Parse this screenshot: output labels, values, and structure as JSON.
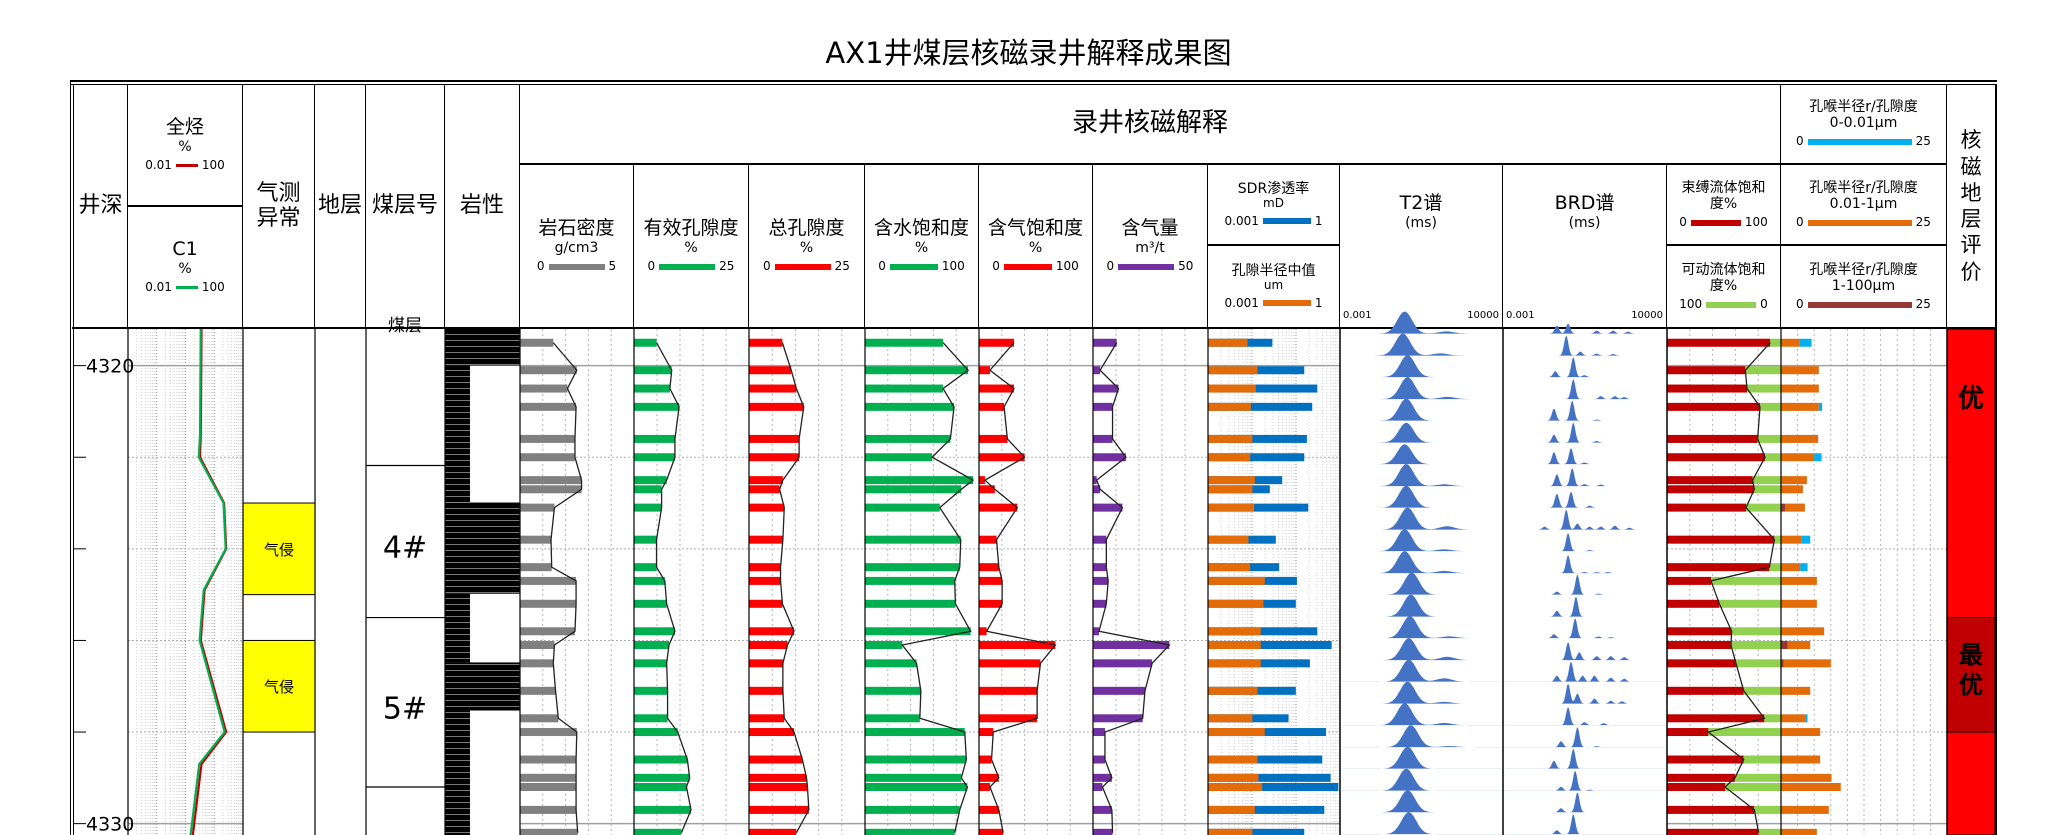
{
  "title": "AX1井煤层核磁录井解释成果图",
  "header": {
    "depth": "井深",
    "total_hc": {
      "name": "全烃",
      "unit": "%",
      "min": "0.01",
      "max": "100",
      "color": "#c00000"
    },
    "c1": {
      "name": "C1",
      "unit": "%",
      "min": "0.01",
      "max": "100",
      "color": "#00b050"
    },
    "gas_anomaly": "气测异常",
    "formation": "地层",
    "seam_no": "煤层号",
    "lithology": "岩性",
    "nmr_group": "录井核磁解释",
    "density": {
      "name": "岩石密度",
      "unit": "g/cm3",
      "min": "0",
      "max": "5",
      "color": "#808080"
    },
    "eff_porosity": {
      "name": "有效孔隙度",
      "unit": "%",
      "min": "0",
      "max": "25",
      "color": "#00b050"
    },
    "total_porosity": {
      "name": "总孔隙度",
      "unit": "%",
      "min": "0",
      "max": "25",
      "color": "#ff0000"
    },
    "water_sat": {
      "name": "含水饱和度",
      "unit": "%",
      "min": "0",
      "max": "100",
      "color": "#00b050"
    },
    "gas_sat": {
      "name": "含气饱和度",
      "unit": "%",
      "min": "0",
      "max": "100",
      "color": "#ff0000"
    },
    "gas_content": {
      "name": "含气量",
      "unit": "m³/t",
      "min": "0",
      "max": "50",
      "color": "#7030a0"
    },
    "sdr": {
      "name": "SDR渗透率",
      "unit": "mD",
      "min": "0.001",
      "max": "1",
      "color": "#0070c0"
    },
    "pore_radius": {
      "name": "孔隙半径中值",
      "unit": "um",
      "min": "0.001",
      "max": "1",
      "color": "#e36c09"
    },
    "t2": {
      "name": "T2谱",
      "unit": "(ms)",
      "min": "0.001",
      "max": "10000"
    },
    "brd": {
      "name": "BRD谱",
      "unit": "(ms)",
      "min": "0.001",
      "max": "10000"
    },
    "bound_fluid": {
      "name": "束缚流体饱和度%",
      "min": "0",
      "max": "100",
      "color": "#c00000"
    },
    "movable_fluid": {
      "name": "可动流体饱和度%",
      "min": "100",
      "max": "0",
      "color": "#92d050"
    },
    "throat1": {
      "name": "孔喉半径r/孔隙度",
      "range": "0-0.01μm",
      "min": "0",
      "max": "25",
      "color": "#00b0f0"
    },
    "throat2": {
      "name": "孔喉半径r/孔隙度",
      "range": "0.01-1μm",
      "min": "0",
      "max": "25",
      "color": "#e36c09"
    },
    "throat3": {
      "name": "孔喉半径r/孔隙度",
      "range": "1-100μm",
      "min": "0",
      "max": "25",
      "color": "#953735"
    },
    "evaluation": "核磁地层评价"
  },
  "depth_range": [
    4319.2,
    4330.25
  ],
  "depth_labels": [
    "4320",
    "4330"
  ],
  "chart_data": {
    "type": "well-log",
    "hydrocarbon": {
      "scale": "log",
      "range": [
        0.01,
        100
      ],
      "total_hc": [
        [
          4319.2,
          3.6
        ],
        [
          4321.5,
          3.4
        ],
        [
          4322.0,
          3.2
        ],
        [
          4323.0,
          22
        ],
        [
          4324.0,
          26
        ],
        [
          4324.9,
          4.6
        ],
        [
          4326.0,
          3.4
        ],
        [
          4328.0,
          26
        ],
        [
          4328.7,
          3.6
        ],
        [
          4330.25,
          1.8
        ]
      ],
      "c1": [
        [
          4319.2,
          3.4
        ],
        [
          4321.5,
          3.2
        ],
        [
          4322.0,
          2.9
        ],
        [
          4323.0,
          21
        ],
        [
          4324.0,
          25
        ],
        [
          4324.9,
          4.3
        ],
        [
          4326.0,
          3.1
        ],
        [
          4328.0,
          23
        ],
        [
          4328.7,
          3.0
        ],
        [
          4330.25,
          1.5
        ]
      ]
    },
    "gas_anomalies": [
      {
        "top": 4323.0,
        "bottom": 4325.0,
        "label": "气侵",
        "color": "#ffff00"
      },
      {
        "top": 4326.0,
        "bottom": 4328.0,
        "label": "气侵",
        "color": "#ffff00"
      }
    ],
    "coal_seams": [
      {
        "top": 4319.2,
        "bottom": 4322.18,
        "label": "煤层"
      },
      {
        "top": 4322.18,
        "bottom": 4325.5,
        "label": "4#"
      },
      {
        "top": 4325.5,
        "bottom": 4329.2,
        "label": "5#"
      },
      {
        "top": 4329.2,
        "bottom": 4330.25,
        "label": ""
      }
    ],
    "lithology": [
      {
        "top": 4319.2,
        "bottom": 4320.0,
        "type": "coal-full"
      },
      {
        "top": 4320.0,
        "bottom": 4322.98,
        "type": "coal-partial"
      },
      {
        "top": 4322.98,
        "bottom": 4324.98,
        "type": "coal-full"
      },
      {
        "top": 4324.98,
        "bottom": 4326.48,
        "type": "coal-partial"
      },
      {
        "top": 4326.48,
        "bottom": 4327.53,
        "type": "coal-full"
      },
      {
        "top": 4327.53,
        "bottom": 4330.25,
        "type": "coal-partial"
      }
    ],
    "sample_depths": [
      4319.5,
      4320.1,
      4320.5,
      4320.9,
      4321.6,
      4322.0,
      4322.5,
      4322.7,
      4323.1,
      4323.8,
      4324.4,
      4324.7,
      4325.2,
      4325.8,
      4326.1,
      4326.5,
      4327.1,
      4327.7,
      4328.0,
      4328.6,
      4329.0,
      4329.2,
      4329.7,
      4330.2
    ],
    "density": [
      1.46,
      2.49,
      2.08,
      2.46,
      2.41,
      2.41,
      2.7,
      2.7,
      1.51,
      1.36,
      1.39,
      2.46,
      2.46,
      2.41,
      1.51,
      1.46,
      1.56,
      1.68,
      2.49,
      2.46,
      2.46,
      2.46,
      2.46,
      2.53
    ],
    "eff_porosity": [
      4.9,
      8.2,
      7.8,
      9.8,
      8.9,
      8.9,
      7.1,
      6.0,
      6.0,
      4.9,
      4.9,
      6.7,
      7.1,
      8.9,
      7.6,
      7.1,
      7.3,
      7.3,
      9.5,
      11.6,
      12.1,
      11.4,
      12.4,
      10.3
    ],
    "total_porosity": [
      7.2,
      9.1,
      10.2,
      11.8,
      10.8,
      10.8,
      7.3,
      6.6,
      7.6,
      7.3,
      6.8,
      6.8,
      7.2,
      9.7,
      8.3,
      7.3,
      7.3,
      7.6,
      9.7,
      11.5,
      12.4,
      12.6,
      12.9,
      10.2
    ],
    "water_sat": [
      68.5,
      90.4,
      68.5,
      78.1,
      74.9,
      58.9,
      94.8,
      84.5,
      65.6,
      84.0,
      83.1,
      78.7,
      79.3,
      92.7,
      32.7,
      45.2,
      49.0,
      48.1,
      87.5,
      88.9,
      84.5,
      89.8,
      83.1,
      78.7
    ],
    "gas_sat": [
      30.7,
      9.6,
      30.7,
      22.0,
      24.9,
      40.0,
      5.2,
      13.9,
      33.6,
      15.4,
      17.4,
      20.3,
      20.3,
      6.7,
      67.0,
      53.9,
      51.0,
      51.0,
      12.5,
      11.0,
      17.4,
      9.6,
      17.4,
      21.2
    ],
    "gas_content": [
      10.3,
      3.1,
      11.1,
      8.5,
      8.5,
      14.3,
      1.6,
      3.1,
      12.8,
      5.8,
      5.8,
      6.6,
      5.8,
      2.6,
      33.2,
      25.7,
      22.6,
      21.6,
      5.2,
      5.2,
      8.2,
      4.1,
      8.2,
      8.5
    ],
    "sdr_perm": [
      0.029,
      0.154,
      0.305,
      0.234,
      0.177,
      0.154,
      0.0485,
      0.0254,
      0.19,
      0.0348,
      0.0415,
      0.105,
      0.099,
      0.305,
      0.646,
      0.207,
      0.099,
      0.0677,
      0.48,
      0.395,
      0.612,
      0.916,
      0.44,
      0.154
    ],
    "pore_radius_median": [
      0.0079,
      0.0133,
      0.0122,
      0.0094,
      0.0102,
      0.0091,
      0.0116,
      0.0102,
      0.0112,
      0.0083,
      0.0091,
      0.0195,
      0.0182,
      0.0158,
      0.0158,
      0.0158,
      0.0133,
      0.0102,
      0.0195,
      0.0133,
      0.014,
      0.017,
      0.0116,
      0.0102
    ],
    "bound_fluid_sat": [
      90.6,
      68.7,
      70.2,
      81.6,
      79.5,
      86.0,
      75.1,
      76.6,
      69.3,
      94.2,
      89.8,
      38.6,
      45.9,
      56.7,
      56.1,
      60.5,
      67.3,
      85.4,
      36.3,
      67.3,
      59.6,
      50.9,
      76.6,
      80.4
    ],
    "movable_fluid_sat": [
      9.4,
      31.3,
      29.8,
      18.4,
      20.5,
      14.0,
      24.9,
      23.4,
      30.7,
      5.8,
      10.2,
      61.4,
      54.1,
      43.3,
      43.9,
      39.5,
      32.7,
      14.6,
      63.7,
      32.7,
      40.4,
      49.1,
      23.4,
      19.6
    ],
    "throat_0_0.01": [
      1.8,
      0,
      0,
      0.5,
      0,
      1.1,
      0,
      0,
      0,
      1.3,
      1.1,
      0,
      0,
      0,
      0,
      0,
      0,
      0.3,
      0,
      0,
      0,
      0,
      0,
      0
    ],
    "throat_0.01_1": [
      2.8,
      5.7,
      5.7,
      5.7,
      5.6,
      5.0,
      3.9,
      3.3,
      3.0,
      3.1,
      2.9,
      5.4,
      5.4,
      6.5,
      3.4,
      7.1,
      4.4,
      3.7,
      5.9,
      5.9,
      7.6,
      9.0,
      7.2,
      5.4
    ],
    "throat_1_100": [
      0,
      0,
      0,
      0,
      0,
      0,
      0,
      0,
      0.6,
      0,
      0,
      0,
      0,
      0,
      1.0,
      0.4,
      0,
      0,
      0,
      0,
      0,
      0,
      0,
      0
    ],
    "spectrum_depths": [
      4319.3,
      4319.78,
      4320.25,
      4320.73,
      4321.2,
      4321.68,
      4322.15,
      4322.63,
      4323.1,
      4323.58,
      4324.05,
      4324.53,
      4325.0,
      4325.48,
      4325.95,
      4326.43,
      4326.9,
      4327.38,
      4327.85,
      4328.33,
      4328.8,
      4329.28,
      4329.75,
      4330.23
    ],
    "t2_spectra": [
      [
        [
          0.6,
          1
        ],
        [
          37,
          0.1
        ]
      ],
      [
        [
          0.5,
          1
        ],
        [
          20,
          0.1
        ]
      ],
      [
        [
          0.8,
          1
        ]
      ],
      [
        [
          0.8,
          1
        ],
        [
          40,
          0.1
        ]
      ],
      [
        [
          0.7,
          1
        ]
      ],
      [
        [
          0.7,
          0.9
        ]
      ],
      [
        [
          0.6,
          0.9
        ]
      ],
      [
        [
          0.7,
          1
        ],
        [
          30,
          0.08
        ]
      ],
      [
        [
          0.7,
          1
        ]
      ],
      [
        [
          0.8,
          1
        ],
        [
          40,
          0.15
        ]
      ],
      [
        [
          0.6,
          1
        ],
        [
          30,
          0.08
        ]
      ],
      [
        [
          0.6,
          1
        ],
        [
          30,
          0.1
        ]
      ],
      [
        [
          1.2,
          1
        ]
      ],
      [
        [
          1.1,
          1
        ]
      ],
      [
        [
          1.0,
          1
        ],
        [
          50,
          0.08
        ]
      ],
      [
        [
          0.9,
          1
        ],
        [
          40,
          0.15
        ]
      ],
      [
        [
          0.9,
          1
        ],
        [
          30,
          0.15
        ]
      ],
      [
        [
          0.8,
          1
        ],
        [
          30,
          0.08
        ]
      ],
      [
        [
          0.6,
          1
        ],
        [
          30,
          0.1
        ]
      ],
      [
        [
          1.1,
          1
        ],
        [
          50,
          0.05
        ]
      ],
      [
        [
          0.8,
          1
        ]
      ],
      [
        [
          0.7,
          1
        ]
      ],
      [
        [
          0.8,
          1
        ]
      ],
      [
        [
          0.9,
          1
        ]
      ]
    ],
    "brd_spectra": [
      [
        [
          0.2,
          0.4
        ],
        [
          0.6,
          0.5
        ],
        [
          10,
          0.15
        ],
        [
          50,
          0.15
        ],
        [
          220,
          0.1
        ]
      ],
      [
        [
          0.5,
          1
        ],
        [
          2,
          0.2
        ],
        [
          10,
          0.1
        ],
        [
          50,
          0.08
        ]
      ],
      [
        [
          0.17,
          0.3
        ],
        [
          1,
          1
        ],
        [
          3,
          0.1
        ]
      ],
      [
        [
          1,
          1
        ],
        [
          15,
          0.15
        ],
        [
          60,
          0.15
        ],
        [
          150,
          0.1
        ]
      ],
      [
        [
          0.15,
          0.6
        ],
        [
          0.9,
          1
        ],
        [
          10,
          0.05
        ]
      ],
      [
        [
          0.15,
          0.4
        ],
        [
          1,
          1
        ],
        [
          10,
          0.08
        ]
      ],
      [
        [
          0.15,
          0.6
        ],
        [
          0.8,
          0.8
        ],
        [
          3,
          0.08
        ]
      ],
      [
        [
          0.2,
          0.6
        ],
        [
          0.9,
          0.9
        ],
        [
          3,
          0.1
        ],
        [
          15,
          0.08
        ]
      ],
      [
        [
          0.2,
          0.7
        ],
        [
          0.8,
          0.8
        ],
        [
          5,
          0.1
        ]
      ],
      [
        [
          0.06,
          0.15
        ],
        [
          0.5,
          1
        ],
        [
          1.5,
          0.3
        ],
        [
          5,
          0.15
        ],
        [
          15,
          0.15
        ],
        [
          60,
          0.2
        ],
        [
          250,
          0.1
        ]
      ],
      [
        [
          0.6,
          0.9
        ],
        [
          5,
          0.05
        ]
      ],
      [
        [
          0.6,
          0.9
        ],
        [
          3,
          0.05
        ],
        [
          10,
          0.05
        ],
        [
          30,
          0.05
        ]
      ],
      [
        [
          0.2,
          0.15
        ],
        [
          1.5,
          1
        ],
        [
          12,
          0.05
        ]
      ],
      [
        [
          0.2,
          0.3
        ],
        [
          1.3,
          1
        ]
      ],
      [
        [
          0.15,
          0.2
        ],
        [
          1.2,
          1
        ],
        [
          12,
          0.08
        ],
        [
          40,
          0.05
        ]
      ],
      [
        [
          0.6,
          0.9
        ],
        [
          1.8,
          0.4
        ],
        [
          10,
          0.2
        ],
        [
          40,
          0.2
        ],
        [
          150,
          0.15
        ]
      ],
      [
        [
          0.2,
          0.3
        ],
        [
          0.8,
          1
        ],
        [
          2.5,
          0.3
        ],
        [
          8,
          0.3
        ],
        [
          40,
          0.2
        ],
        [
          150,
          0.15
        ]
      ],
      [
        [
          0.6,
          1
        ],
        [
          1.5,
          0.5
        ],
        [
          8,
          0.25
        ],
        [
          40,
          0.15
        ],
        [
          120,
          0.12
        ]
      ],
      [
        [
          0.6,
          0.9
        ],
        [
          3,
          0.15
        ],
        [
          20,
          0.1
        ]
      ],
      [
        [
          0.3,
          0.3
        ],
        [
          1.5,
          1
        ],
        [
          10,
          0.05
        ]
      ],
      [
        [
          0.15,
          0.4
        ],
        [
          1,
          1
        ]
      ],
      [
        [
          0.3,
          0.2
        ],
        [
          1.2,
          1
        ],
        [
          5,
          0.05
        ]
      ],
      [
        [
          0.3,
          0.2
        ],
        [
          1.5,
          1
        ]
      ],
      [
        [
          0.2,
          0.2
        ],
        [
          1,
          1
        ]
      ]
    ],
    "spectrum_color": "#4472c4",
    "evaluation": [
      {
        "top": 4319.2,
        "bottom": 4325.5,
        "label": "优",
        "color": "#ff0000"
      },
      {
        "top": 4325.5,
        "bottom": 4328.0,
        "label": "最优",
        "color": "#c00000"
      },
      {
        "top": 4328.0,
        "bottom": 4330.25,
        "label": "",
        "color": "#ff0000"
      }
    ]
  }
}
